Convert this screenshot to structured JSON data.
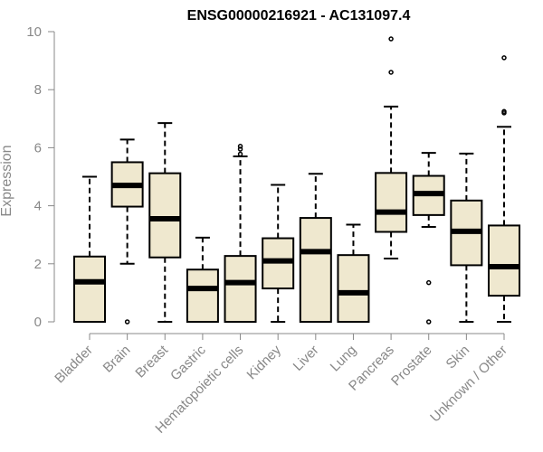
{
  "chart_data": {
    "type": "box",
    "title": "ENSG00000216921 - AC131097.4",
    "xlabel": "",
    "ylabel": "Expression",
    "ylim": [
      0,
      10
    ],
    "yticks": [
      "0",
      "2",
      "4",
      "6",
      "8",
      "10"
    ],
    "categories": [
      "Bladder",
      "Brain",
      "Breast",
      "Gastric",
      "Hematopoietic cells",
      "Kidney",
      "Liver",
      "Lung",
      "Pancreas",
      "Prostate",
      "Skin",
      "Unknown / Other"
    ],
    "boxes": [
      {
        "min": 0,
        "q1": 0,
        "median": 1.38,
        "q3": 2.25,
        "max": 5.0,
        "outliers": []
      },
      {
        "min": 2.0,
        "q1": 3.97,
        "median": 4.7,
        "q3": 5.5,
        "max": 6.28,
        "outliers": [
          0
        ]
      },
      {
        "min": 0,
        "q1": 2.22,
        "median": 3.55,
        "q3": 5.12,
        "max": 6.85,
        "outliers": []
      },
      {
        "min": 0,
        "q1": 0,
        "median": 1.15,
        "q3": 1.8,
        "max": 2.9,
        "outliers": []
      },
      {
        "min": 0,
        "q1": 0,
        "median": 1.35,
        "q3": 2.27,
        "max": 5.7,
        "outliers": [
          5.78,
          5.95,
          6.05
        ]
      },
      {
        "min": 0,
        "q1": 1.15,
        "median": 2.1,
        "q3": 2.88,
        "max": 4.72,
        "outliers": []
      },
      {
        "min": 0,
        "q1": 0,
        "median": 2.42,
        "q3": 3.58,
        "max": 5.1,
        "outliers": []
      },
      {
        "min": 0,
        "q1": 0,
        "median": 1.0,
        "q3": 2.3,
        "max": 3.35,
        "outliers": []
      },
      {
        "min": 2.18,
        "q1": 3.1,
        "median": 3.78,
        "q3": 5.13,
        "max": 7.42,
        "outliers": [
          8.6,
          9.75
        ]
      },
      {
        "min": 3.27,
        "q1": 3.68,
        "median": 4.42,
        "q3": 5.03,
        "max": 5.82,
        "outliers": [
          1.35,
          0
        ]
      },
      {
        "min": 0,
        "q1": 1.95,
        "median": 3.12,
        "q3": 4.18,
        "max": 5.8,
        "outliers": []
      },
      {
        "min": 0,
        "q1": 0.9,
        "median": 1.9,
        "q3": 3.32,
        "max": 6.72,
        "outliers": [
          7.2,
          7.25,
          9.1
        ]
      }
    ],
    "colors": {
      "box_fill": "#efe8cf",
      "line": "#000000",
      "axis": "#888888"
    }
  }
}
